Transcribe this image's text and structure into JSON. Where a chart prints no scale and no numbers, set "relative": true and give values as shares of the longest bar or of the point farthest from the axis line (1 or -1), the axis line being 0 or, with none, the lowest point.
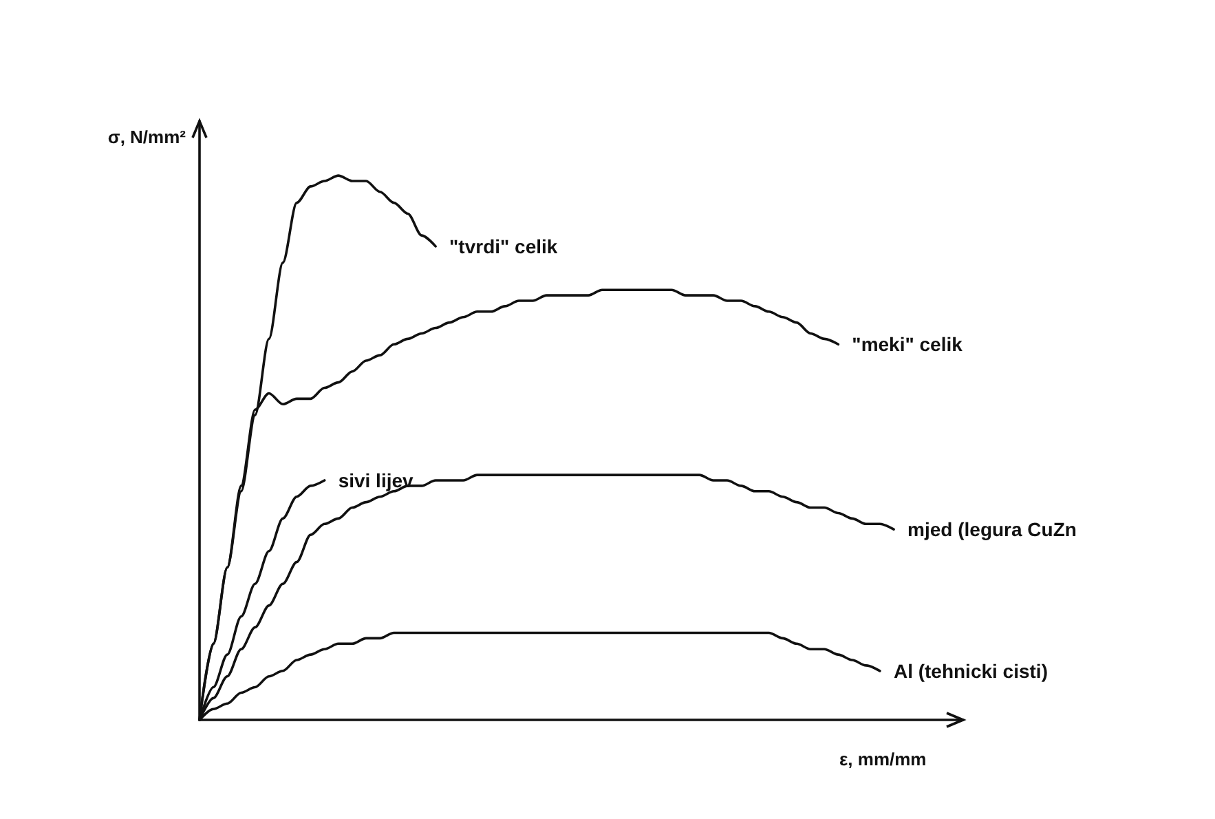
{
  "chart_data": {
    "type": "line",
    "relative": true,
    "xlabel": "ε, mm/mm",
    "ylabel": "σ, N/mm²",
    "grid": false,
    "legend": false,
    "marker": "none",
    "line_style": "solid",
    "categories": [
      null,
      null,
      null,
      null,
      null,
      null,
      null,
      null,
      null,
      null,
      null,
      null,
      null,
      null,
      null,
      null,
      null,
      null,
      null,
      null,
      null,
      null,
      null,
      null,
      null,
      null,
      null,
      null,
      null,
      null,
      null,
      null,
      null,
      null,
      null,
      null,
      null,
      null,
      null,
      null,
      null,
      null,
      null,
      null,
      null,
      null,
      null,
      null,
      null,
      null,
      null,
      null,
      null,
      null,
      null,
      null
    ],
    "series": [
      {
        "name": "\"tvrdi\" celik",
        "color": "#111111",
        "values": [
          0,
          0.14,
          0.28,
          0.42,
          0.56,
          0.7,
          0.84,
          0.95,
          0.98,
          0.99,
          1,
          0.99,
          0.99,
          0.97,
          0.95,
          0.93,
          0.89,
          0.87,
          null,
          null,
          null,
          null,
          null,
          null,
          null,
          null,
          null,
          null,
          null,
          null,
          null,
          null,
          null,
          null,
          null,
          null,
          null,
          null,
          null,
          null,
          null,
          null,
          null,
          null,
          null,
          null,
          null,
          null,
          null,
          null,
          null,
          null,
          null,
          null,
          null,
          null
        ]
      },
      {
        "name": "\"meki\" celik",
        "color": "#111111",
        "values": [
          0,
          0.14,
          0.28,
          0.43,
          0.57,
          0.6,
          0.58,
          0.59,
          0.59,
          0.61,
          0.62,
          0.64,
          0.66,
          0.67,
          0.69,
          0.7,
          0.71,
          0.72,
          0.73,
          0.74,
          0.75,
          0.75,
          0.76,
          0.77,
          0.77,
          0.78,
          0.78,
          0.78,
          0.78,
          0.79,
          0.79,
          0.79,
          0.79,
          0.79,
          0.79,
          0.78,
          0.78,
          0.78,
          0.77,
          0.77,
          0.76,
          0.75,
          0.74,
          0.73,
          0.71,
          0.7,
          0.69,
          null,
          null,
          null,
          null,
          null,
          null,
          null,
          null,
          null
        ]
      },
      {
        "name": "sivi lijev",
        "color": "#111111",
        "values": [
          0,
          0.06,
          0.12,
          0.19,
          0.25,
          0.31,
          0.37,
          0.41,
          0.43,
          0.44,
          null,
          null,
          null,
          null,
          null,
          null,
          null,
          null,
          null,
          null,
          null,
          null,
          null,
          null,
          null,
          null,
          null,
          null,
          null,
          null,
          null,
          null,
          null,
          null,
          null,
          null,
          null,
          null,
          null,
          null,
          null,
          null,
          null,
          null,
          null,
          null,
          null,
          null,
          null,
          null,
          null,
          null,
          null,
          null,
          null,
          null
        ]
      },
      {
        "name": "mjed (legura CuZn",
        "color": "#111111",
        "values": [
          0,
          0.04,
          0.08,
          0.13,
          0.17,
          0.21,
          0.25,
          0.29,
          0.34,
          0.36,
          0.37,
          0.39,
          0.4,
          0.41,
          0.42,
          0.43,
          0.43,
          0.44,
          0.44,
          0.44,
          0.45,
          0.45,
          0.45,
          0.45,
          0.45,
          0.45,
          0.45,
          0.45,
          0.45,
          0.45,
          0.45,
          0.45,
          0.45,
          0.45,
          0.45,
          0.45,
          0.45,
          0.44,
          0.44,
          0.43,
          0.42,
          0.42,
          0.41,
          0.4,
          0.39,
          0.39,
          0.38,
          0.37,
          0.36,
          0.36,
          0.35,
          null,
          null,
          null,
          null,
          null
        ]
      },
      {
        "name": "Al (tehnicki cisti)",
        "color": "#111111",
        "values": [
          0,
          0.02,
          0.03,
          0.05,
          0.06,
          0.08,
          0.09,
          0.11,
          0.12,
          0.13,
          0.14,
          0.14,
          0.15,
          0.15,
          0.16,
          0.16,
          0.16,
          0.16,
          0.16,
          0.16,
          0.16,
          0.16,
          0.16,
          0.16,
          0.16,
          0.16,
          0.16,
          0.16,
          0.16,
          0.16,
          0.16,
          0.16,
          0.16,
          0.16,
          0.16,
          0.16,
          0.16,
          0.16,
          0.16,
          0.16,
          0.16,
          0.16,
          0.15,
          0.14,
          0.13,
          0.13,
          0.12,
          0.11,
          0.1,
          0.09,
          null,
          null,
          null,
          null,
          null,
          null
        ]
      }
    ]
  }
}
